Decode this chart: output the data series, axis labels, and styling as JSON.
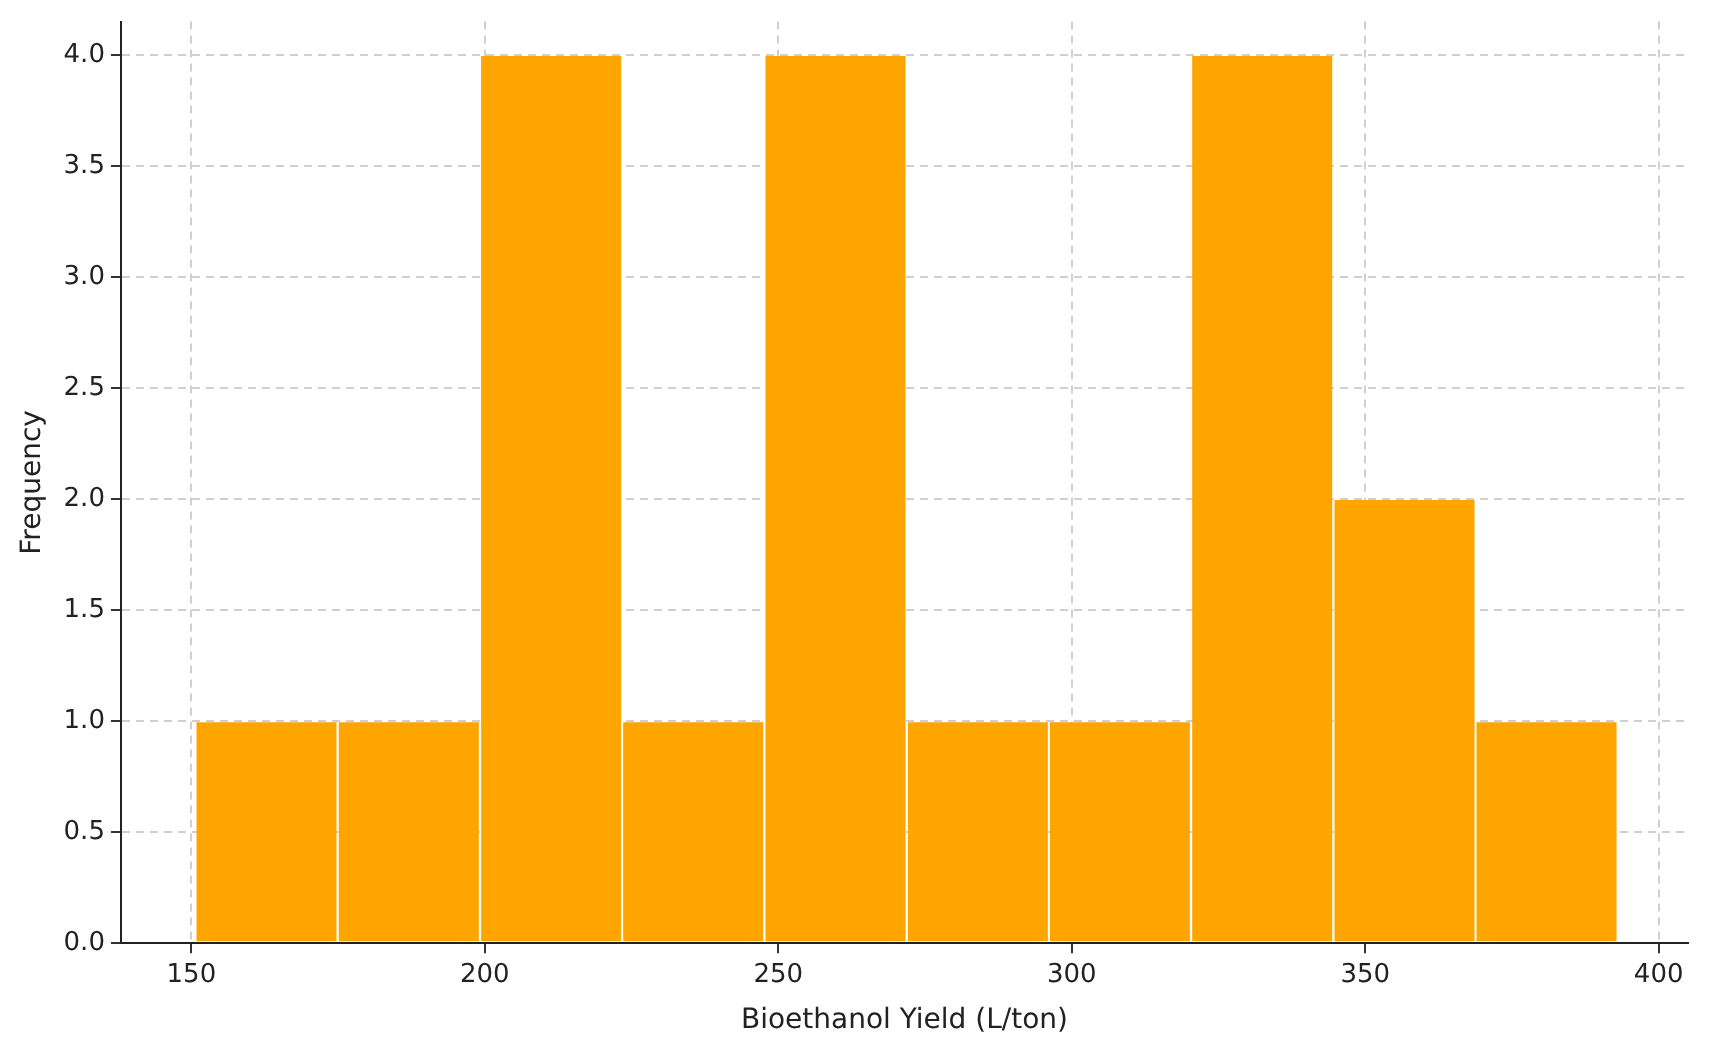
{
  "chart_data": {
    "type": "histogram",
    "xlabel": "Bioethanol Yield (L/ton)",
    "ylabel": "Frequency",
    "bins": [
      150.7,
      174.9,
      199.2,
      223.4,
      247.6,
      271.9,
      296.1,
      320.3,
      344.6,
      368.8,
      393.0
    ],
    "values": [
      1,
      1,
      4,
      1,
      4,
      1,
      1,
      4,
      2,
      1
    ],
    "color": "#ffa500",
    "xlim": [
      138,
      405
    ],
    "xticks": [
      150,
      200,
      250,
      300,
      350,
      400
    ],
    "ylim": [
      0,
      4.15
    ],
    "yticks": [
      {
        "value": 0,
        "label": "0.0"
      },
      {
        "value": 0.5,
        "label": "0.5"
      },
      {
        "value": 1,
        "label": "1.0"
      },
      {
        "value": 1.5,
        "label": "1.5"
      },
      {
        "value": 2,
        "label": "2.0"
      },
      {
        "value": 2.5,
        "label": "2.5"
      },
      {
        "value": 3,
        "label": "3.0"
      },
      {
        "value": 3.5,
        "label": "3.5"
      },
      {
        "value": 4,
        "label": "4.0"
      }
    ],
    "grid": true
  }
}
